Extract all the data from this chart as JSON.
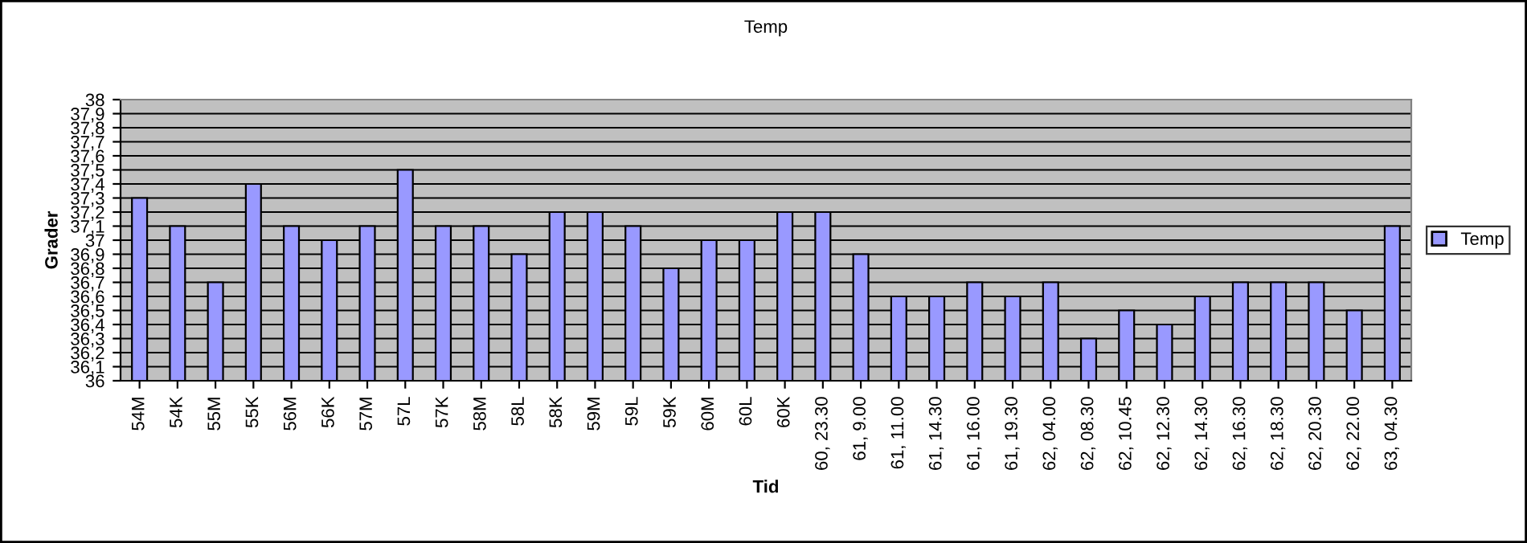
{
  "chart_data": {
    "type": "bar",
    "title": "Temp",
    "xlabel": "Tid",
    "ylabel": "Grader",
    "categories": [
      "54M",
      "54K",
      "55M",
      "55K",
      "56M",
      "56K",
      "57M",
      "57L",
      "57K",
      "58M",
      "58L",
      "58K",
      "59M",
      "59L",
      "59K",
      "60M",
      "60L",
      "60K",
      "60, 23.30",
      "61, 9.00",
      "61, 11.00",
      "61, 14.30",
      "61, 16.00",
      "61, 19.30",
      "62, 04.00",
      "62, 08.30",
      "62, 10.45",
      "62, 12.30",
      "62, 14.30",
      "62, 16.30",
      "62, 18.30",
      "62, 20.30",
      "62, 22.00",
      "63, 04.30"
    ],
    "series": [
      {
        "name": "Temp",
        "color": "#9999ff",
        "values": [
          37.3,
          37.1,
          36.7,
          37.4,
          37.1,
          37.0,
          37.1,
          37.5,
          37.1,
          37.1,
          36.9,
          37.2,
          37.2,
          37.1,
          36.8,
          37.0,
          37.0,
          37.2,
          37.2,
          36.9,
          36.6,
          36.6,
          36.7,
          36.6,
          36.7,
          36.3,
          36.5,
          36.4,
          36.6,
          36.7,
          36.7,
          36.7,
          36.5,
          37.1
        ]
      }
    ],
    "ylim": [
      36,
      38
    ],
    "yticks": [
      36,
      {
        "value": 36.1,
        "label": "36,1"
      },
      {
        "value": 36.2,
        "label": "36,2"
      },
      {
        "value": 36.3,
        "label": "36,3"
      },
      {
        "value": 36.4,
        "label": "36,4"
      },
      {
        "value": 36.5,
        "label": "36,5"
      },
      {
        "value": 36.6,
        "label": "36,6"
      },
      {
        "value": 36.7,
        "label": "36,7"
      },
      {
        "value": 36.8,
        "label": "36,8"
      },
      {
        "value": 36.9,
        "label": "36,9"
      },
      37,
      {
        "value": 37.1,
        "label": "37,1"
      },
      {
        "value": 37.2,
        "label": "37,2"
      },
      {
        "value": 37.3,
        "label": "37,3"
      },
      {
        "value": 37.4,
        "label": "37,4"
      },
      {
        "value": 37.5,
        "label": "37,5"
      },
      {
        "value": 37.6,
        "label": "37,6"
      },
      {
        "value": 37.7,
        "label": "37,7"
      },
      {
        "value": 37.8,
        "label": "37,8"
      },
      {
        "value": 37.9,
        "label": "37,9"
      },
      38
    ],
    "grid": "y",
    "legend": "right"
  }
}
